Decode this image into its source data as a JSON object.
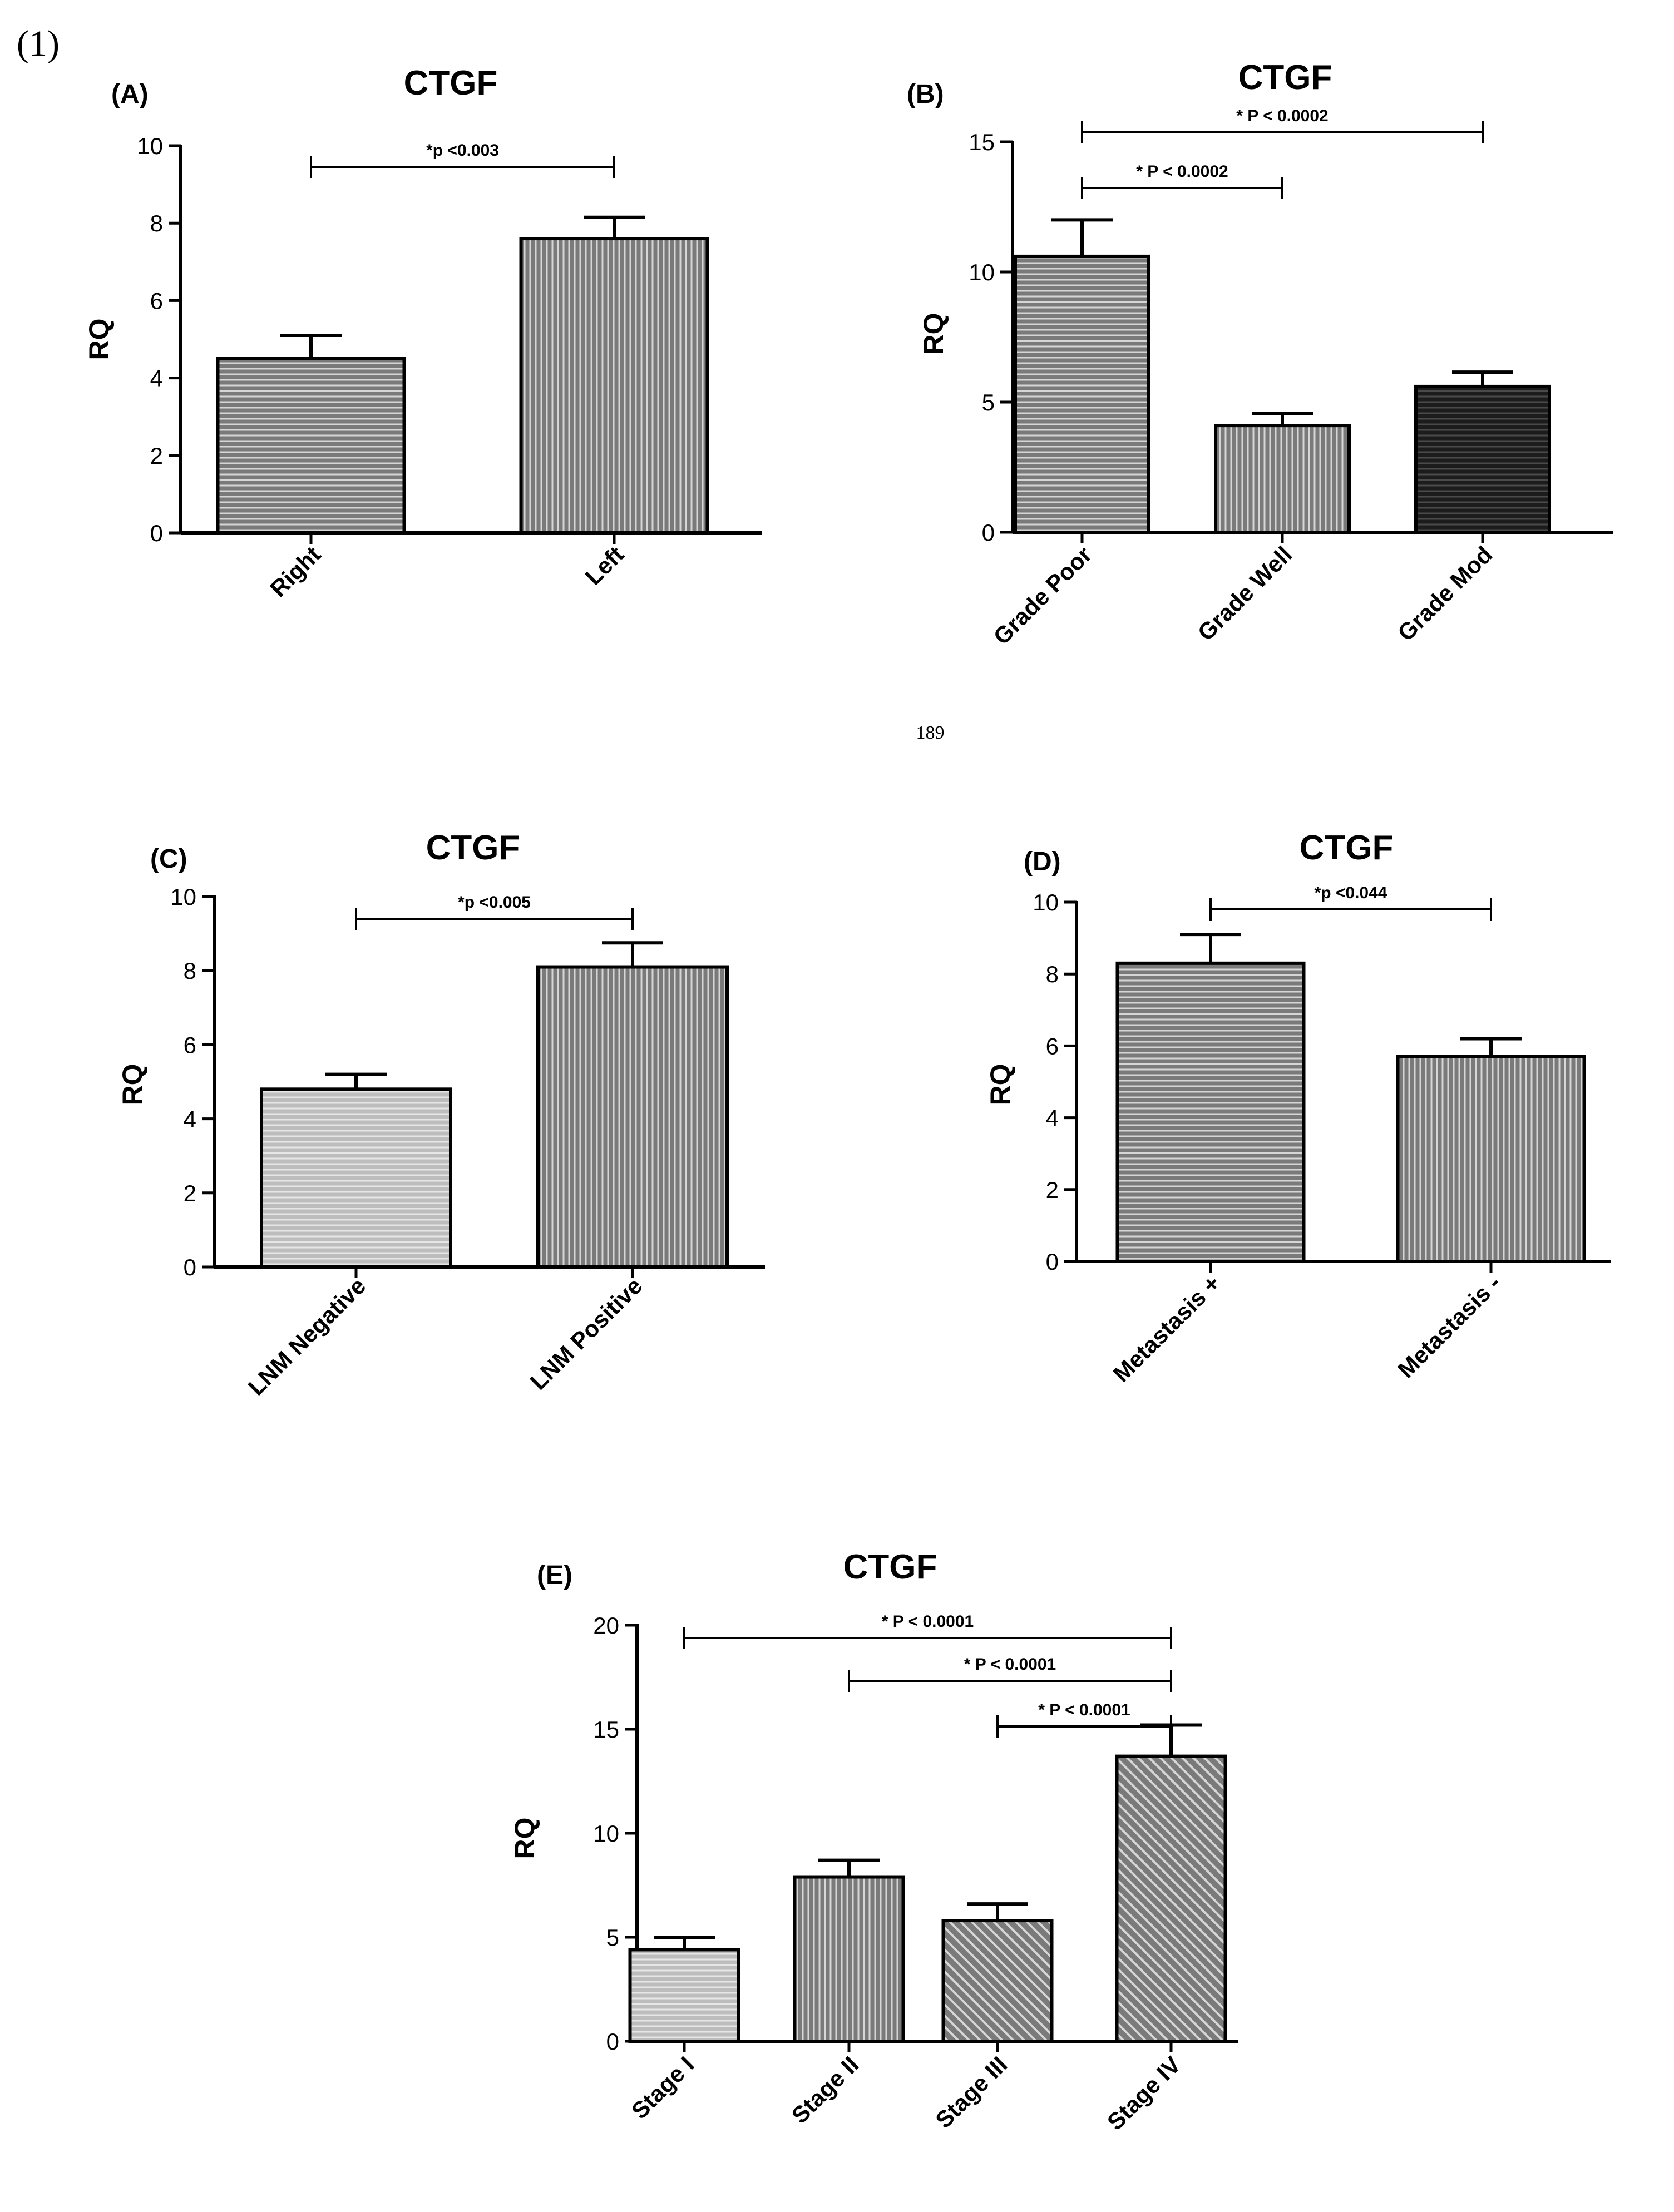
{
  "figure_label": "(1)",
  "page_number": "189",
  "colors": {
    "bar_fill": "#7a7a7a",
    "bar_fill_light": "#bdbdbd",
    "bar_fill_dark": "#1c1c1c",
    "stroke": "#000000"
  },
  "chart_data": [
    {
      "panel": "(A)",
      "type": "bar",
      "title": "CTGF",
      "ylabel": "RQ",
      "xlabel": "",
      "categories": [
        "Right",
        "Left"
      ],
      "values": [
        4.5,
        7.6
      ],
      "errors": [
        0.6,
        0.55
      ],
      "fills": [
        "horizontal",
        "vertical"
      ],
      "ylim": [
        0,
        10
      ],
      "yticks": [
        0,
        2,
        4,
        6,
        8,
        10
      ],
      "sig": [
        {
          "from": 0,
          "to": 1,
          "label": "*p <0.003"
        }
      ]
    },
    {
      "panel": "(B)",
      "type": "bar",
      "title": "CTGF",
      "ylabel": "RQ",
      "xlabel": "",
      "categories": [
        "Grade Poor",
        "Grade Well",
        "Grade Mod"
      ],
      "values": [
        10.6,
        4.1,
        5.6
      ],
      "errors": [
        1.4,
        0.45,
        0.55
      ],
      "fills": [
        "horizontal",
        "vertical",
        "dark"
      ],
      "ylim": [
        0,
        15
      ],
      "yticks": [
        0,
        5,
        10,
        15
      ],
      "sig": [
        {
          "from": 0,
          "to": 2,
          "label": "* P < 0.0002"
        },
        {
          "from": 0,
          "to": 1,
          "label": "* P < 0.0002"
        }
      ]
    },
    {
      "panel": "(C)",
      "type": "bar",
      "title": "CTGF",
      "ylabel": "RQ",
      "xlabel": "",
      "categories": [
        "LNM Negative",
        "LNM Positive"
      ],
      "values": [
        4.8,
        8.1
      ],
      "errors": [
        0.4,
        0.65
      ],
      "fills": [
        "light",
        "vertical"
      ],
      "ylim": [
        0,
        10
      ],
      "yticks": [
        0,
        2,
        4,
        6,
        8,
        10
      ],
      "sig": [
        {
          "from": 0,
          "to": 1,
          "label": "*p <0.005"
        }
      ]
    },
    {
      "panel": "(D)",
      "type": "bar",
      "title": "CTGF",
      "ylabel": "RQ",
      "xlabel": "",
      "categories": [
        "Metastasis +",
        "Metastasis -"
      ],
      "values": [
        8.3,
        5.7
      ],
      "errors": [
        0.8,
        0.5
      ],
      "fills": [
        "horizontal",
        "vertical"
      ],
      "ylim": [
        0,
        10
      ],
      "yticks": [
        0,
        2,
        4,
        6,
        8,
        10
      ],
      "sig": [
        {
          "from": 0,
          "to": 1,
          "label": "*p <0.044"
        }
      ]
    },
    {
      "panel": "(E)",
      "type": "bar",
      "title": "CTGF",
      "ylabel": "RQ",
      "xlabel": "",
      "categories": [
        "Stage I",
        "Stage II",
        "Stage III",
        "Stage IV"
      ],
      "values": [
        4.4,
        7.9,
        5.8,
        13.7
      ],
      "errors": [
        0.6,
        0.8,
        0.8,
        1.5
      ],
      "fills": [
        "light",
        "vertical",
        "diagonal",
        "diagonal"
      ],
      "ylim": [
        0,
        20
      ],
      "yticks": [
        0,
        5,
        10,
        15,
        20
      ],
      "sig": [
        {
          "from": 0,
          "to": 3,
          "label": "* P < 0.0001"
        },
        {
          "from": 1,
          "to": 3,
          "label": "* P < 0.0001"
        },
        {
          "from": 2,
          "to": 3,
          "label": "* P < 0.0001"
        }
      ]
    }
  ]
}
